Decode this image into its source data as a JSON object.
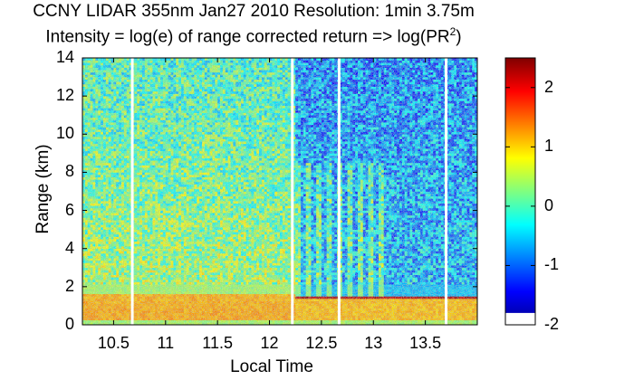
{
  "chart_data": {
    "type": "heatmap",
    "title": "CCNY LIDAR 355nm Jan27 2010 Resolution: 1min 3.75m",
    "subtitle": "Intensity = log(e) of range corrected return => log(PR",
    "subtitle_sup": "2",
    "subtitle_end": ")",
    "xlabel": "Local Time",
    "ylabel": "Range (km)",
    "xlim": [
      10.2,
      14.0
    ],
    "ylim": [
      0,
      14
    ],
    "xticks": [
      "10.5",
      "11",
      "11.5",
      "12",
      "12.5",
      "13",
      "13.5"
    ],
    "xtick_values": [
      10.5,
      11,
      11.5,
      12,
      12.5,
      13,
      13.5
    ],
    "yticks": [
      "0",
      "2",
      "4",
      "6",
      "8",
      "10",
      "12",
      "14"
    ],
    "ytick_values": [
      0,
      2,
      4,
      6,
      8,
      10,
      12,
      14
    ],
    "colorbar_ticks": [
      "-2",
      "-1",
      "0",
      "1",
      "2"
    ],
    "colorbar_values": [
      -2,
      -1,
      0,
      1,
      2
    ],
    "colorbar_range": [
      -2,
      2.5
    ],
    "colormap": "jet",
    "data_gaps_time": [
      10.68,
      12.22,
      12.67,
      13.7
    ],
    "boundary_layer_top_km": 1.35,
    "regions": [
      {
        "time": [
          10.2,
          12.25
        ],
        "below_km": 1.5,
        "intensity": 1.2
      },
      {
        "time": [
          10.2,
          12.25
        ],
        "above_km": 1.5,
        "intensity": 0.1
      },
      {
        "time": [
          12.25,
          14.0
        ],
        "below_km": 1.3,
        "intensity": 1.1
      },
      {
        "time": [
          12.25,
          14.0
        ],
        "above_km": 1.4,
        "intensity": -0.8
      }
    ]
  }
}
